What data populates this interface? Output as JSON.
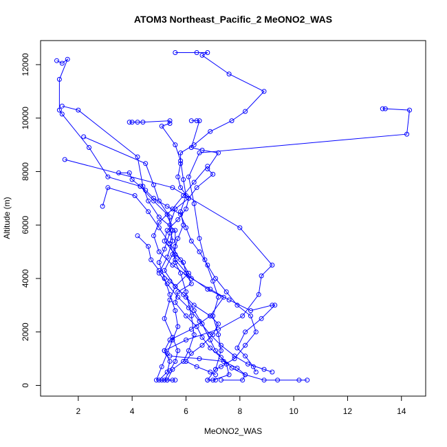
{
  "chart_data": {
    "type": "scatter",
    "title": "ATOM3 Northeast_Pacific_2 MeONO2_WAS",
    "xlabel": "MeONO2_WAS",
    "ylabel": "Altitude (m)",
    "xlim": [
      0.6,
      14.9
    ],
    "ylim": [
      -400,
      12900
    ],
    "xticks": [
      2,
      4,
      6,
      8,
      10,
      12,
      14
    ],
    "yticks": [
      0,
      2000,
      4000,
      6000,
      8000,
      10000,
      12000
    ],
    "grid": false,
    "series_color": "#0000ff",
    "series": [
      {
        "points": [
          [
            5.6,
            12450
          ],
          [
            6.4,
            12450
          ],
          [
            6.8,
            12450
          ],
          [
            6.6,
            12350
          ],
          [
            7.6,
            11650
          ],
          [
            8.9,
            11000
          ],
          [
            8.2,
            10250
          ],
          [
            7.7,
            9900
          ],
          [
            6.9,
            9500
          ],
          [
            6.3,
            9000
          ],
          [
            5.8,
            8700
          ],
          [
            5.8,
            8300
          ],
          [
            5.7,
            7800
          ],
          [
            5.8,
            7400
          ],
          [
            6.1,
            7000
          ],
          [
            6.0,
            6600
          ],
          [
            5.7,
            6200
          ],
          [
            5.3,
            5800
          ],
          [
            5.2,
            5400
          ],
          [
            5.6,
            4900
          ],
          [
            5.9,
            4600
          ],
          [
            6.0,
            4200
          ],
          [
            6.2,
            3800
          ],
          [
            5.7,
            3500
          ],
          [
            5.6,
            3100
          ],
          [
            6.0,
            2600
          ],
          [
            6.4,
            2200
          ],
          [
            6.6,
            1800
          ],
          [
            6.9,
            1400
          ],
          [
            7.3,
            1050
          ],
          [
            7.7,
            650
          ],
          [
            8.2,
            400
          ],
          [
            8.9,
            200
          ],
          [
            9.4,
            200
          ],
          [
            10.2,
            200
          ],
          [
            10.5,
            200
          ]
        ]
      },
      {
        "points": [
          [
            1.2,
            12150
          ],
          [
            1.4,
            12050
          ],
          [
            1.6,
            12200
          ],
          [
            1.3,
            11450
          ],
          [
            1.3,
            10300
          ],
          [
            1.4,
            10150
          ],
          [
            2.4,
            8900
          ],
          [
            3.1,
            7800
          ],
          [
            4.3,
            7450
          ],
          [
            4.8,
            6900
          ],
          [
            5.3,
            6400
          ],
          [
            5.5,
            5800
          ],
          [
            5.4,
            5300
          ],
          [
            5.8,
            4700
          ],
          [
            6.1,
            4200
          ],
          [
            5.6,
            3700
          ],
          [
            5.4,
            3200
          ],
          [
            5.2,
            2500
          ],
          [
            5.5,
            1800
          ],
          [
            5.7,
            1300
          ],
          [
            5.6,
            900
          ],
          [
            5.4,
            550
          ],
          [
            5.2,
            200
          ],
          [
            5.1,
            200
          ]
        ]
      },
      {
        "points": [
          [
            1.4,
            10450
          ],
          [
            2.0,
            10300
          ],
          [
            4.2,
            8550
          ],
          [
            4.4,
            7450
          ],
          [
            4.6,
            6900
          ],
          [
            5.0,
            6300
          ],
          [
            5.6,
            5800
          ],
          [
            5.6,
            5200
          ],
          [
            5.6,
            4600
          ],
          [
            5.8,
            4200
          ],
          [
            6.0,
            3500
          ],
          [
            6.2,
            2600
          ],
          [
            6.3,
            1900
          ],
          [
            6.1,
            1300
          ],
          [
            5.9,
            900
          ],
          [
            5.5,
            600
          ],
          [
            5.3,
            200
          ],
          [
            5.6,
            200
          ]
        ]
      },
      {
        "points": [
          [
            13.3,
            10350
          ],
          [
            13.4,
            10350
          ],
          [
            14.3,
            10300
          ],
          [
            14.2,
            9400
          ],
          [
            6.5,
            8700
          ],
          [
            6.1,
            7800
          ],
          [
            6.3,
            6800
          ],
          [
            6.5,
            5500
          ],
          [
            6.7,
            4700
          ],
          [
            7.0,
            3900
          ],
          [
            7.2,
            3300
          ],
          [
            7.0,
            2600
          ],
          [
            7.2,
            1900
          ],
          [
            7.3,
            1300
          ],
          [
            7.1,
            600
          ],
          [
            6.8,
            200
          ],
          [
            7.1,
            200
          ]
        ]
      },
      {
        "points": [
          [
            1.5,
            8450
          ],
          [
            5.5,
            7400
          ],
          [
            8.0,
            5900
          ],
          [
            9.2,
            4500
          ],
          [
            8.8,
            4100
          ],
          [
            8.7,
            3400
          ],
          [
            8.1,
            2600
          ],
          [
            7.2,
            2100
          ],
          [
            6.0,
            1700
          ],
          [
            5.2,
            1300
          ],
          [
            5.4,
            1100
          ],
          [
            6.5,
            1000
          ],
          [
            7.4,
            900
          ],
          [
            7.9,
            650
          ],
          [
            8.2,
            400
          ],
          [
            8.1,
            200
          ],
          [
            7.3,
            200
          ]
        ]
      },
      {
        "points": [
          [
            2.9,
            6700
          ],
          [
            3.1,
            7400
          ],
          [
            4.1,
            7100
          ],
          [
            4.6,
            6500
          ],
          [
            5.0,
            5900
          ],
          [
            5.4,
            5300
          ],
          [
            5.6,
            4700
          ],
          [
            6.1,
            4100
          ],
          [
            6.8,
            3600
          ],
          [
            7.4,
            3300
          ],
          [
            6.9,
            2600
          ],
          [
            6.2,
            2100
          ],
          [
            5.4,
            1700
          ],
          [
            5.2,
            1300
          ],
          [
            5.4,
            900
          ],
          [
            5.3,
            500
          ],
          [
            5.0,
            200
          ],
          [
            5.5,
            200
          ]
        ]
      },
      {
        "points": [
          [
            2.2,
            9300
          ],
          [
            4.5,
            8300
          ],
          [
            4.8,
            7500
          ],
          [
            5.0,
            6900
          ],
          [
            5.4,
            6300
          ],
          [
            5.4,
            5700
          ],
          [
            5.2,
            5100
          ],
          [
            5.0,
            4600
          ],
          [
            5.2,
            4000
          ],
          [
            5.4,
            3400
          ],
          [
            5.6,
            2800
          ],
          [
            5.7,
            2200
          ],
          [
            5.5,
            1700
          ],
          [
            5.3,
            1200
          ],
          [
            5.1,
            700
          ],
          [
            4.9,
            200
          ],
          [
            5.3,
            200
          ]
        ]
      },
      {
        "points": [
          [
            3.9,
            9850
          ],
          [
            4.0,
            9850
          ],
          [
            4.2,
            9850
          ],
          [
            4.4,
            9850
          ],
          [
            5.4,
            9900
          ],
          [
            5.4,
            9800
          ],
          [
            5.1,
            9700
          ],
          [
            5.6,
            9000
          ],
          [
            5.8,
            8400
          ],
          [
            5.9,
            7700
          ],
          [
            6.0,
            7100
          ],
          [
            5.8,
            6500
          ],
          [
            5.9,
            6000
          ],
          [
            5.7,
            5500
          ],
          [
            5.5,
            4900
          ],
          [
            5.2,
            4300
          ],
          [
            5.6,
            3700
          ],
          [
            6.0,
            3300
          ],
          [
            6.3,
            2800
          ],
          [
            6.6,
            2300
          ],
          [
            6.9,
            1700
          ],
          [
            7.1,
            1300
          ],
          [
            7.5,
            800
          ],
          [
            7.6,
            400
          ],
          [
            7.0,
            200
          ],
          [
            6.8,
            200
          ]
        ]
      },
      {
        "points": [
          [
            6.2,
            9900
          ],
          [
            6.4,
            9900
          ],
          [
            6.5,
            9900
          ],
          [
            6.2,
            8900
          ],
          [
            6.6,
            8800
          ],
          [
            7.2,
            8700
          ],
          [
            6.8,
            8100
          ],
          [
            7.0,
            7900
          ],
          [
            6.4,
            7400
          ],
          [
            6.1,
            7000
          ],
          [
            5.6,
            6600
          ],
          [
            5.4,
            6000
          ],
          [
            5.5,
            5400
          ],
          [
            5.3,
            4800
          ],
          [
            5.0,
            4200
          ],
          [
            5.3,
            3800
          ],
          [
            5.7,
            3300
          ],
          [
            6.1,
            2900
          ],
          [
            6.5,
            2400
          ],
          [
            6.9,
            1900
          ],
          [
            7.3,
            1500
          ],
          [
            7.8,
            1100
          ],
          [
            8.3,
            800
          ],
          [
            8.9,
            600
          ],
          [
            9.2,
            500
          ]
        ]
      },
      {
        "points": [
          [
            3.5,
            7950
          ],
          [
            3.9,
            7950
          ],
          [
            4.0,
            7700
          ],
          [
            4.3,
            7450
          ],
          [
            4.5,
            7300
          ],
          [
            4.8,
            7000
          ],
          [
            5.3,
            6700
          ],
          [
            5.8,
            6400
          ],
          [
            6.0,
            5900
          ],
          [
            6.2,
            5400
          ],
          [
            6.5,
            5000
          ],
          [
            6.8,
            4500
          ],
          [
            7.1,
            4000
          ],
          [
            7.5,
            3500
          ],
          [
            7.9,
            3000
          ],
          [
            8.4,
            2600
          ],
          [
            8.6,
            2000
          ],
          [
            8.2,
            1500
          ],
          [
            7.8,
            1000
          ],
          [
            7.3,
            700
          ],
          [
            7.1,
            600
          ]
        ]
      },
      {
        "points": [
          [
            6.8,
            8200
          ],
          [
            6.3,
            7600
          ],
          [
            5.9,
            7100
          ],
          [
            5.5,
            6600
          ],
          [
            5.0,
            6100
          ],
          [
            4.8,
            5600
          ],
          [
            5.0,
            5000
          ],
          [
            5.5,
            4500
          ],
          [
            6.2,
            4000
          ],
          [
            6.9,
            3600
          ],
          [
            7.6,
            3200
          ],
          [
            8.4,
            2800
          ],
          [
            9.2,
            3000
          ],
          [
            9.3,
            3000
          ],
          [
            8.8,
            2500
          ],
          [
            8.2,
            2000
          ],
          [
            7.9,
            1400
          ],
          [
            8.2,
            1100
          ],
          [
            8.5,
            700
          ],
          [
            8.6,
            500
          ]
        ]
      },
      {
        "points": [
          [
            4.2,
            5600
          ],
          [
            4.6,
            5200
          ],
          [
            4.7,
            4700
          ],
          [
            5.0,
            4300
          ],
          [
            5.4,
            3900
          ],
          [
            5.9,
            3400
          ],
          [
            6.3,
            3000
          ],
          [
            6.9,
            2600
          ],
          [
            7.2,
            2300
          ],
          [
            7.0,
            1900
          ],
          [
            6.6,
            1500
          ],
          [
            6.2,
            1200
          ],
          [
            6.0,
            900
          ],
          [
            6.4,
            700
          ],
          [
            6.9,
            500
          ],
          [
            7.1,
            400
          ]
        ]
      }
    ]
  }
}
